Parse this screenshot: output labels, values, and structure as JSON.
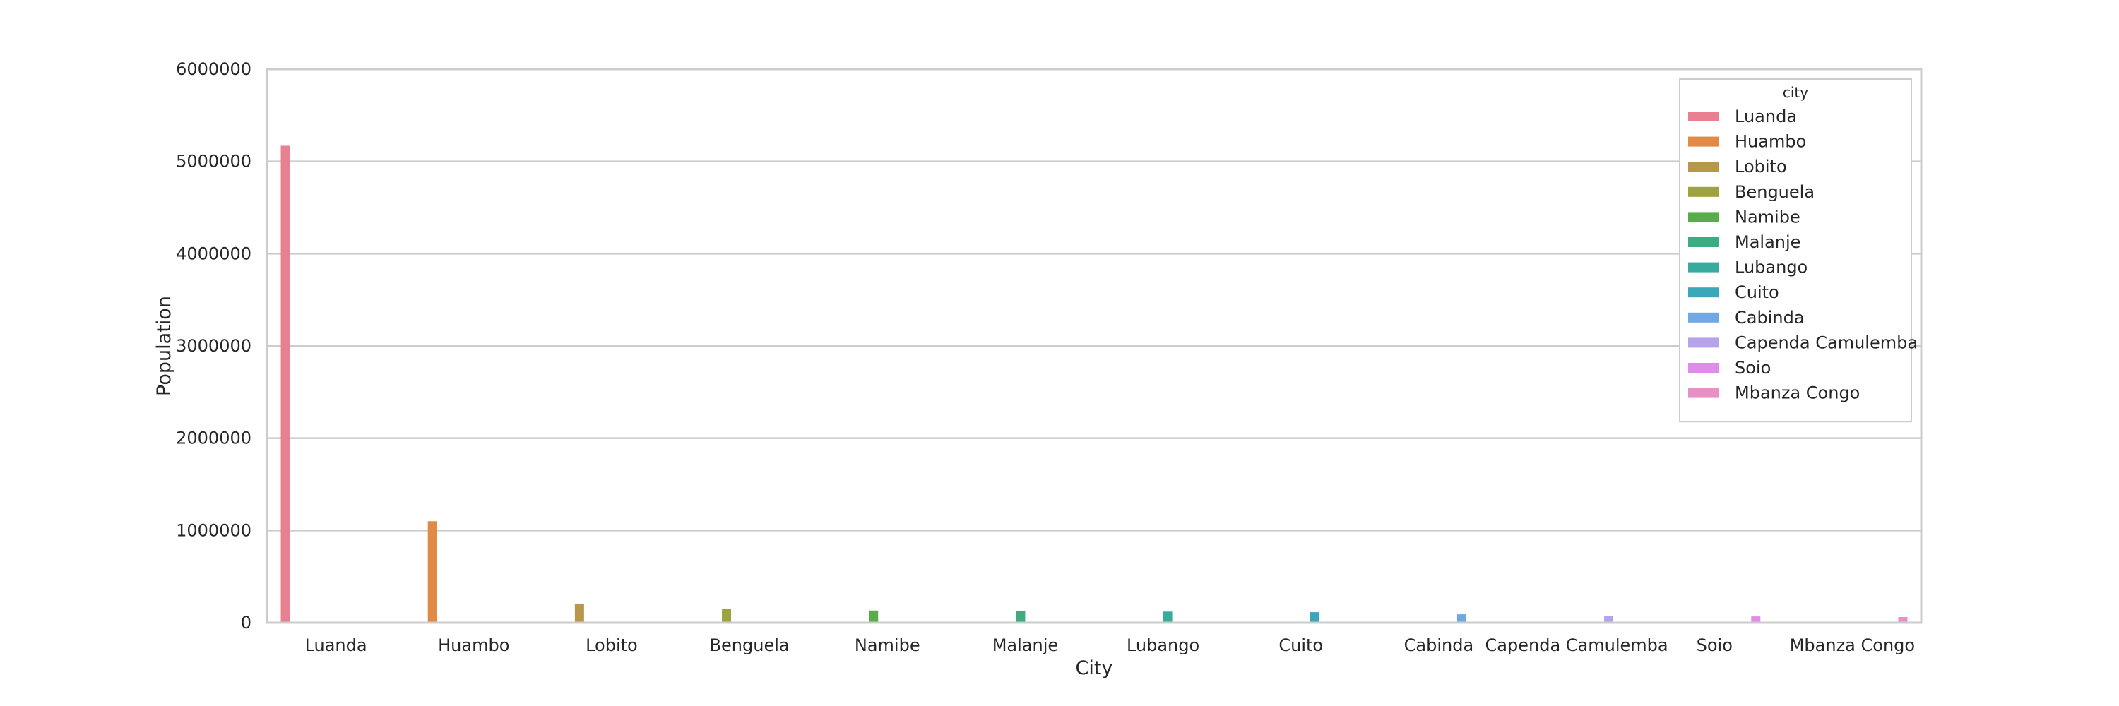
{
  "chart_data": {
    "type": "bar",
    "xlabel": "City",
    "ylabel": "Population",
    "ylim": [
      0,
      6000000
    ],
    "y_ticks": [
      0,
      1000000,
      2000000,
      3000000,
      4000000,
      5000000,
      6000000
    ],
    "y_tick_labels": [
      "0",
      "1000000",
      "2000000",
      "3000000",
      "4000000",
      "5000000",
      "6000000"
    ],
    "grid": true,
    "legend_title": "city",
    "legend_position": "top-right",
    "categories": [
      "Luanda",
      "Huambo",
      "Lobito",
      "Benguela",
      "Namibe",
      "Malanje",
      "Lubango",
      "Cuito",
      "Cabinda",
      "Capenda Camulemba",
      "Soio",
      "Mbanza Congo"
    ],
    "series": [
      {
        "name": "Luanda",
        "color": "#e8808f",
        "values": [
          5170000,
          null,
          null,
          null,
          null,
          null,
          null,
          null,
          null,
          null,
          null,
          null
        ]
      },
      {
        "name": "Huambo",
        "color": "#e08a46",
        "values": [
          null,
          1100000,
          null,
          null,
          null,
          null,
          null,
          null,
          null,
          null,
          null,
          null
        ]
      },
      {
        "name": "Lobito",
        "color": "#b8964a",
        "values": [
          null,
          null,
          207000,
          null,
          null,
          null,
          null,
          null,
          null,
          null,
          null,
          null
        ]
      },
      {
        "name": "Benguela",
        "color": "#9ca33f",
        "values": [
          null,
          null,
          null,
          152000,
          null,
          null,
          null,
          null,
          null,
          null,
          null,
          null
        ]
      },
      {
        "name": "Namibe",
        "color": "#56ad4a",
        "values": [
          null,
          null,
          null,
          null,
          132000,
          null,
          null,
          null,
          null,
          null,
          null,
          null
        ]
      },
      {
        "name": "Malanje",
        "color": "#3aae81",
        "values": [
          null,
          null,
          null,
          null,
          null,
          125000,
          null,
          null,
          null,
          null,
          null,
          null
        ]
      },
      {
        "name": "Lubango",
        "color": "#37ac9e",
        "values": [
          null,
          null,
          null,
          null,
          null,
          null,
          120000,
          null,
          null,
          null,
          null,
          null
        ]
      },
      {
        "name": "Cuito",
        "color": "#3aa8b9",
        "values": [
          null,
          null,
          null,
          null,
          null,
          null,
          null,
          114000,
          null,
          null,
          null,
          null
        ]
      },
      {
        "name": "Cabinda",
        "color": "#6fa8e3",
        "values": [
          null,
          null,
          null,
          null,
          null,
          null,
          null,
          null,
          91000,
          null,
          null,
          null
        ]
      },
      {
        "name": "Capenda Camulemba",
        "color": "#b7a2ec",
        "values": [
          null,
          null,
          null,
          null,
          null,
          null,
          null,
          null,
          null,
          75000,
          null,
          null
        ]
      },
      {
        "name": "Soio",
        "color": "#e08ceb",
        "values": [
          null,
          null,
          null,
          null,
          null,
          null,
          null,
          null,
          null,
          null,
          68000,
          null
        ]
      },
      {
        "name": "Mbanza Congo",
        "color": "#e88fc6",
        "values": [
          null,
          null,
          null,
          null,
          null,
          null,
          null,
          null,
          null,
          null,
          null,
          61000
        ]
      }
    ]
  }
}
